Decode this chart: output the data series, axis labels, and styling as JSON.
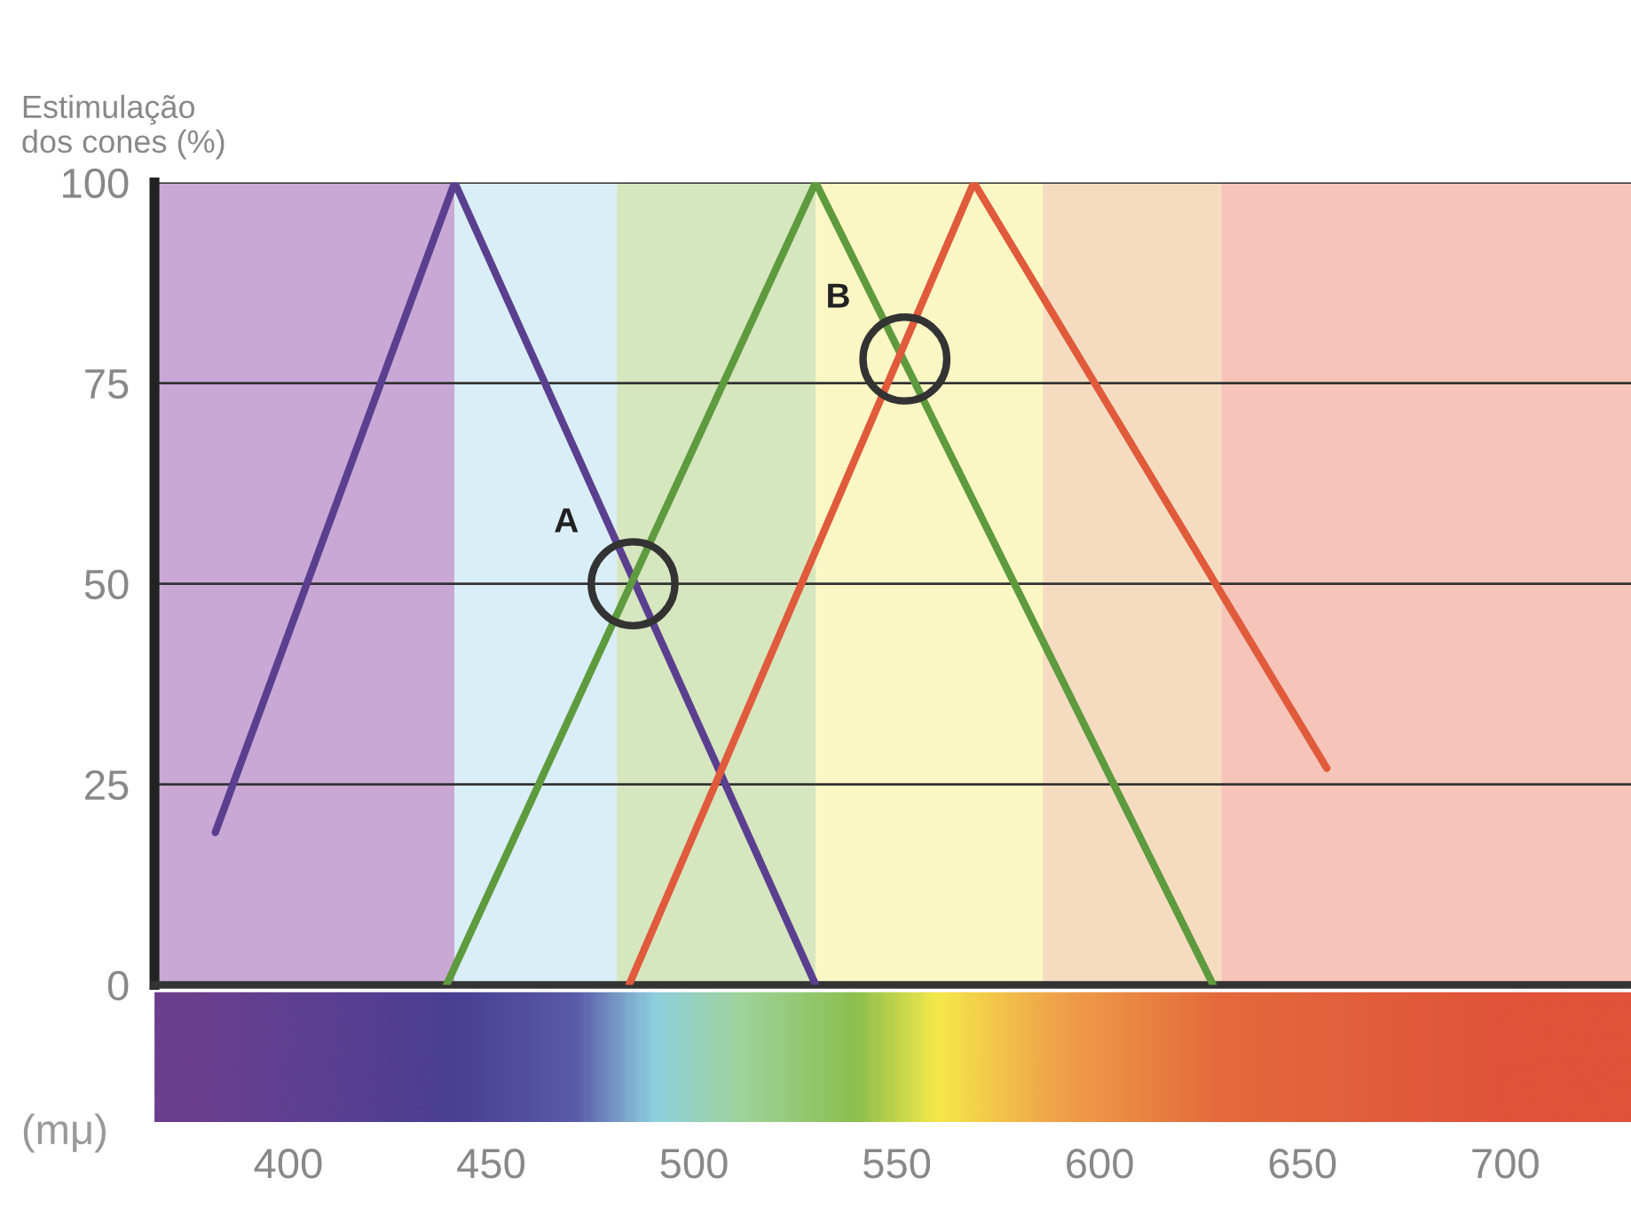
{
  "chart_data": {
    "type": "line",
    "ylabel": "Estimulação\ndos cones (%)",
    "xlabel": "(mμ)",
    "xlim": [
      367,
      731
    ],
    "xticks": [
      400,
      450,
      500,
      550,
      600,
      650,
      700
    ],
    "ylim": [
      0,
      100
    ],
    "yticks": [
      0,
      25,
      50,
      75,
      100
    ],
    "grid": "y",
    "legend": false,
    "marker": "none",
    "line_style": "solid",
    "series": [
      {
        "color": "#5b3f8f",
        "x": [
          382,
          441,
          530
        ],
        "values": [
          19,
          100,
          0
        ]
      },
      {
        "color": "#5e9a3e",
        "x": [
          439,
          530,
          628
        ],
        "values": [
          0,
          100,
          0
        ]
      },
      {
        "color": "#e05a3c",
        "x": [
          484,
          569,
          656
        ],
        "values": [
          0,
          100,
          27
        ]
      }
    ],
    "bands": [
      {
        "axis": "x",
        "from": 367,
        "to": 441,
        "color": "#c9a8d6"
      },
      {
        "axis": "x",
        "from": 441,
        "to": 481,
        "color": "#d9eef6"
      },
      {
        "axis": "x",
        "from": 481,
        "to": 530,
        "color": "#d6e6bf"
      },
      {
        "axis": "x",
        "from": 530,
        "to": 586,
        "color": "#fbf7c4"
      },
      {
        "axis": "x",
        "from": 586,
        "to": 630,
        "color": "#f5dcc0"
      },
      {
        "axis": "x",
        "from": 630,
        "to": 731,
        "color": "#f6c4b8"
      }
    ],
    "annotations": [
      {
        "text": "A",
        "x": 485,
        "y": 50
      },
      {
        "text": "B",
        "x": 552,
        "y": 78
      }
    ]
  }
}
